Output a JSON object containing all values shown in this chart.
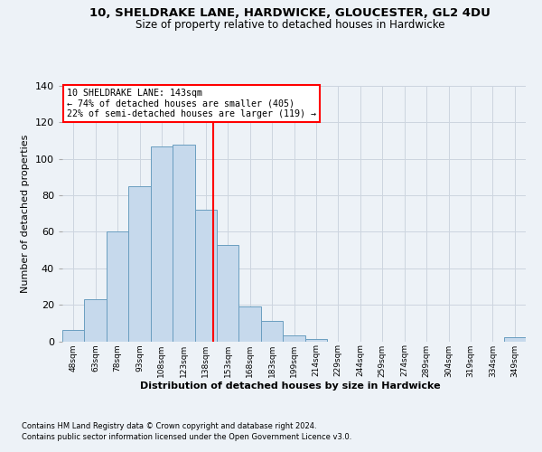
{
  "title1": "10, SHELDRAKE LANE, HARDWICKE, GLOUCESTER, GL2 4DU",
  "title2": "Size of property relative to detached houses in Hardwicke",
  "xlabel": "Distribution of detached houses by size in Hardwicke",
  "ylabel": "Number of detached properties",
  "categories": [
    "48sqm",
    "63sqm",
    "78sqm",
    "93sqm",
    "108sqm",
    "123sqm",
    "138sqm",
    "153sqm",
    "168sqm",
    "183sqm",
    "199sqm",
    "214sqm",
    "229sqm",
    "244sqm",
    "259sqm",
    "274sqm",
    "289sqm",
    "304sqm",
    "319sqm",
    "334sqm",
    "349sqm"
  ],
  "values": [
    6,
    23,
    60,
    85,
    107,
    108,
    72,
    53,
    19,
    11,
    3,
    1,
    0,
    0,
    0,
    0,
    0,
    0,
    0,
    0,
    2
  ],
  "bar_color": "#c6d9ec",
  "bar_edge_color": "#6a9ec0",
  "ref_line_x": 5,
  "annotation_title": "10 SHELDRAKE LANE: 143sqm",
  "annotation_line2": "← 74% of detached houses are smaller (405)",
  "annotation_line3": "22% of semi-detached houses are larger (119) →",
  "ylim": [
    0,
    140
  ],
  "yticks": [
    0,
    20,
    40,
    60,
    80,
    100,
    120,
    140
  ],
  "footnote1": "Contains HM Land Registry data © Crown copyright and database right 2024.",
  "footnote2": "Contains public sector information licensed under the Open Government Licence v3.0.",
  "bg_color": "#edf2f7",
  "grid_color": "#d0d8e4",
  "title1_fontsize": 9.5,
  "title2_fontsize": 8.5
}
